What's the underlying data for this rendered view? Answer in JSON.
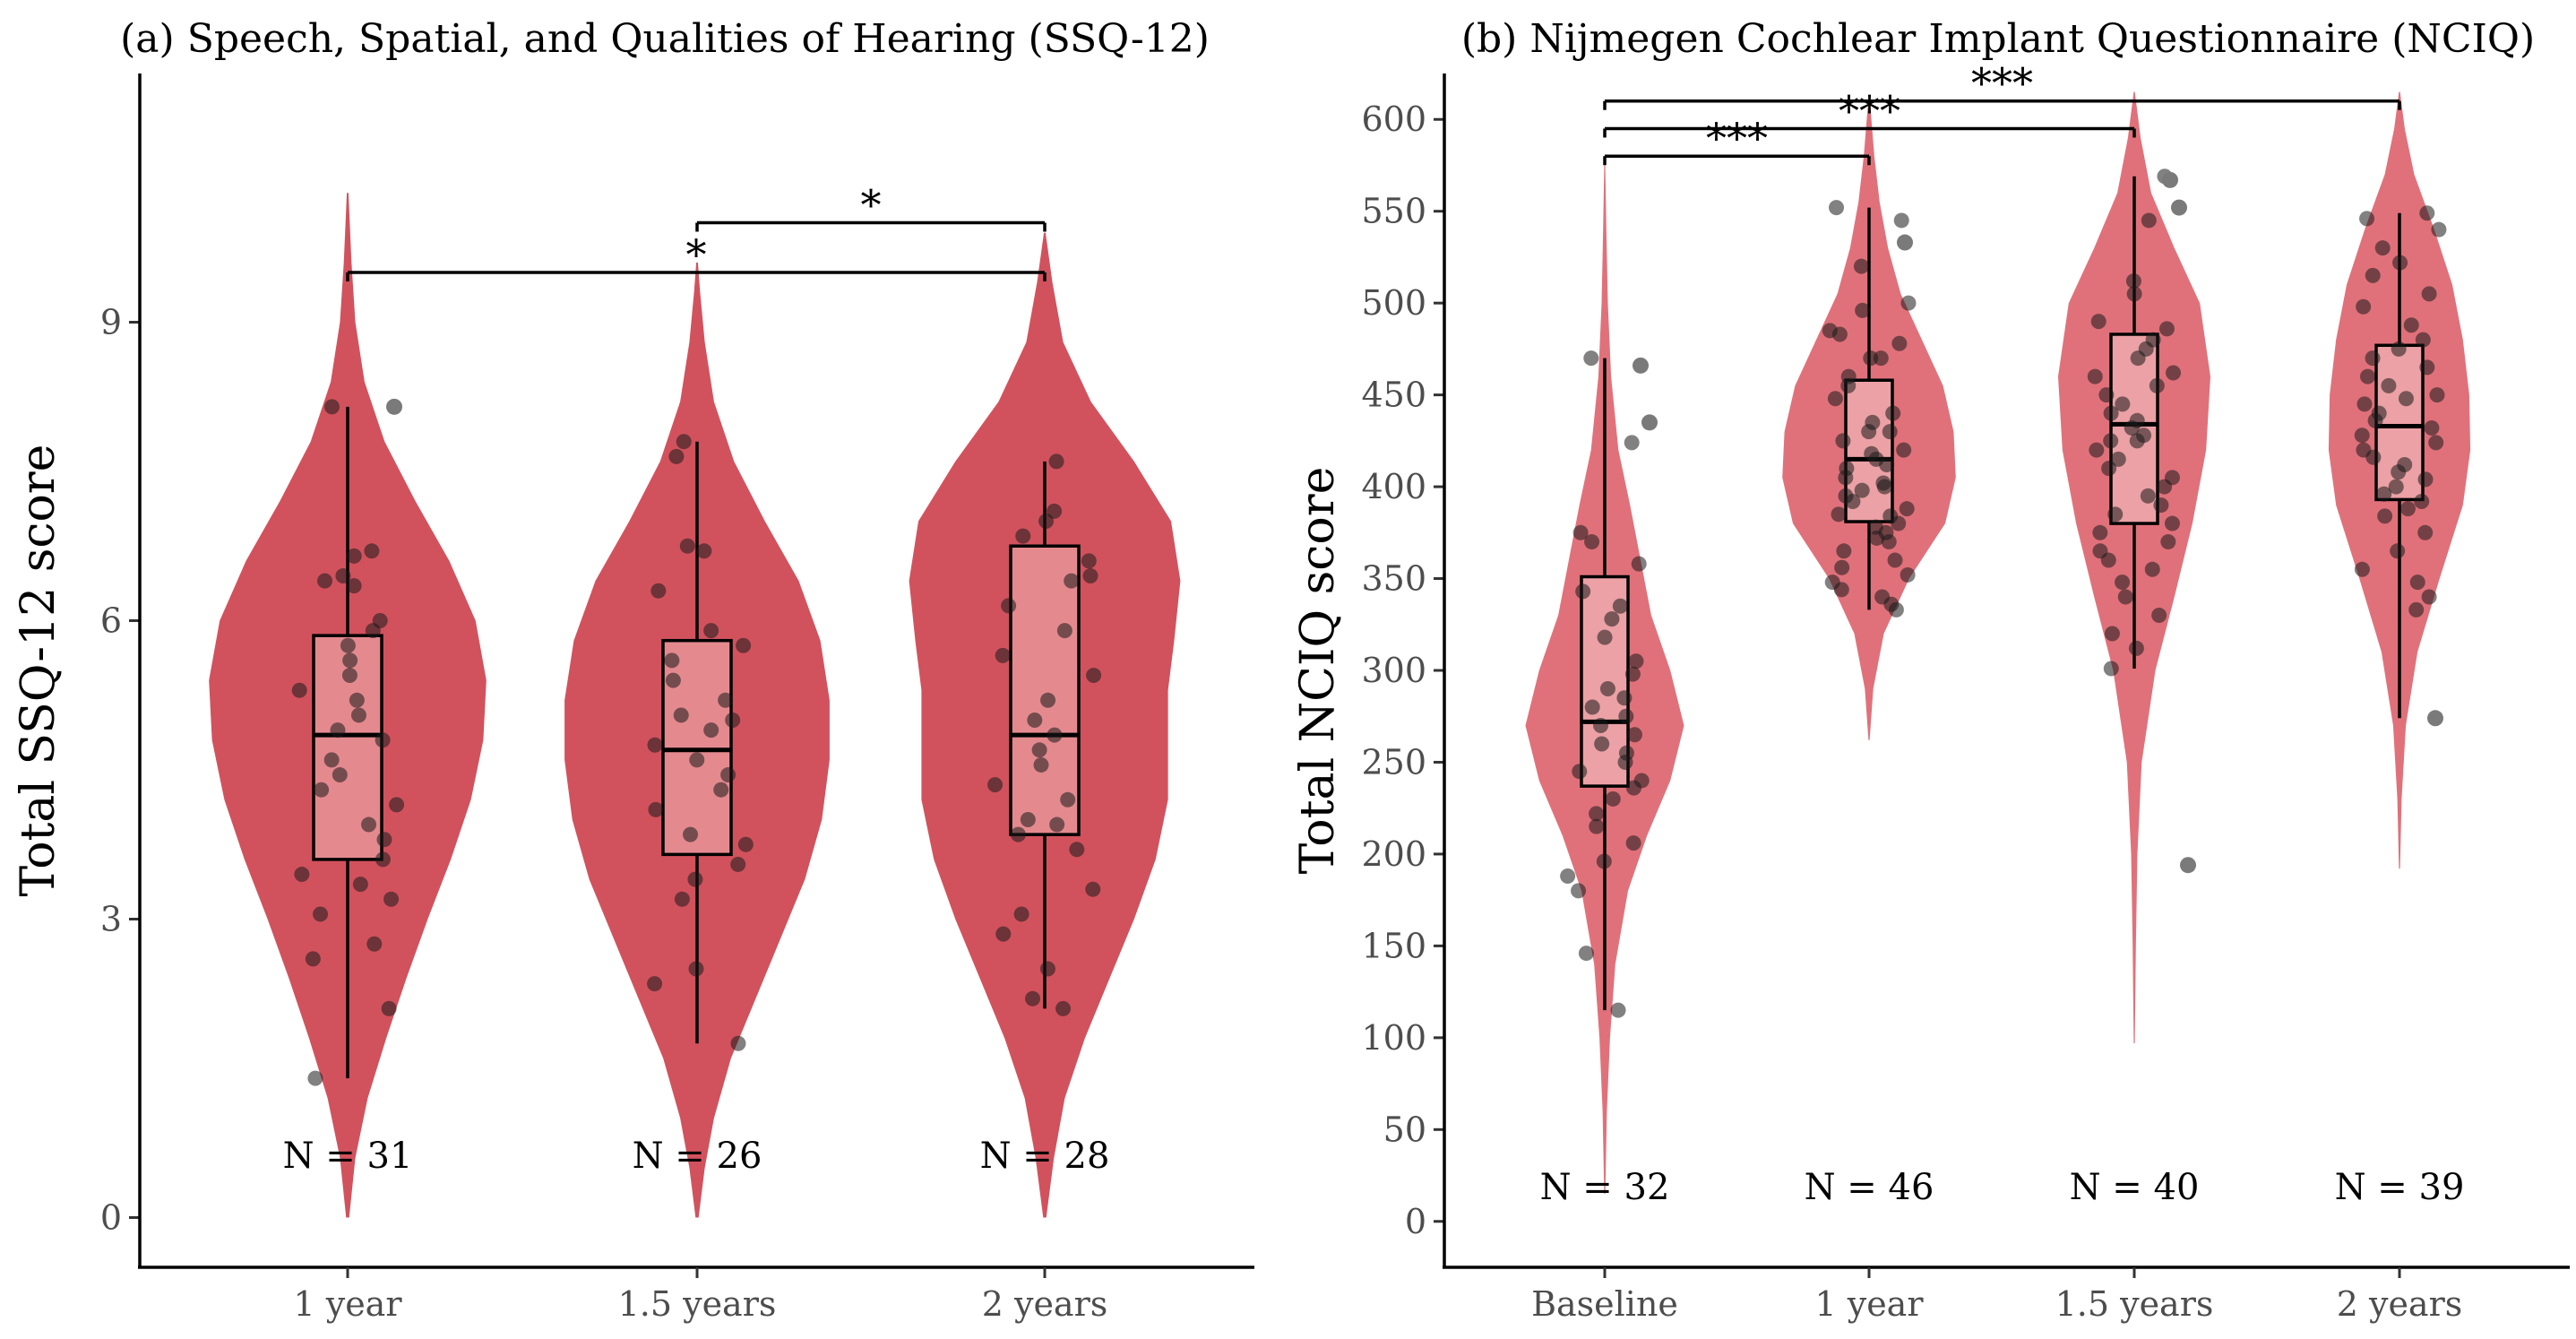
{
  "chart_data": [
    {
      "type": "violin",
      "title": "(a) Speech, Spatial, and Qualities of Hearing (SSQ-12)",
      "ylabel": "Total SSQ-12 score",
      "xlabel": "",
      "categories": [
        "1 year",
        "1.5 years",
        "2 years"
      ],
      "yticks": [
        "0",
        "3",
        "6",
        "9"
      ],
      "ylim": [
        -0.5,
        11.5
      ],
      "violin_color": "#d1525d",
      "box_fill": "#e48a8f",
      "n_labels": [
        "N = 31",
        "N = 26",
        "N = 28"
      ],
      "significance": [
        {
          "from": "1 year",
          "to": "2 years",
          "label": "*",
          "y": 9.5
        },
        {
          "from": "1.5 years",
          "to": "2 years",
          "label": "*",
          "y": 10.0
        }
      ],
      "boxes": [
        {
          "category": "1 year",
          "whisker_low": 1.4,
          "q1": 3.6,
          "median": 4.85,
          "q3": 5.85,
          "whisker_high": 8.15,
          "outliers": [
            8.15
          ]
        },
        {
          "category": "1.5 years",
          "whisker_low": 1.75,
          "q1": 3.65,
          "median": 4.7,
          "q3": 5.8,
          "whisker_high": 7.8,
          "outliers": []
        },
        {
          "category": "2 years",
          "whisker_low": 2.1,
          "q1": 3.85,
          "median": 4.85,
          "q3": 6.75,
          "whisker_high": 7.6,
          "outliers": []
        }
      ],
      "violins": [
        {
          "category": "1 year",
          "min": 0.0,
          "max": 10.3,
          "profile": [
            [
              0.0,
              0.01
            ],
            [
              0.6,
              0.05
            ],
            [
              1.2,
              0.13
            ],
            [
              1.8,
              0.25
            ],
            [
              2.4,
              0.38
            ],
            [
              3.0,
              0.52
            ],
            [
              3.6,
              0.67
            ],
            [
              4.2,
              0.8
            ],
            [
              4.8,
              0.88
            ],
            [
              5.4,
              0.9
            ],
            [
              6.0,
              0.83
            ],
            [
              6.6,
              0.66
            ],
            [
              7.2,
              0.44
            ],
            [
              7.8,
              0.24
            ],
            [
              8.4,
              0.11
            ],
            [
              9.0,
              0.05
            ],
            [
              9.6,
              0.025
            ],
            [
              10.3,
              0.005
            ]
          ]
        },
        {
          "category": "1.5 years",
          "min": 0.0,
          "max": 9.6,
          "profile": [
            [
              0.0,
              0.01
            ],
            [
              0.5,
              0.05
            ],
            [
              1.0,
              0.11
            ],
            [
              1.6,
              0.22
            ],
            [
              2.2,
              0.38
            ],
            [
              2.8,
              0.54
            ],
            [
              3.4,
              0.7
            ],
            [
              4.0,
              0.81
            ],
            [
              4.6,
              0.86
            ],
            [
              5.2,
              0.86
            ],
            [
              5.8,
              0.8
            ],
            [
              6.4,
              0.66
            ],
            [
              7.0,
              0.44
            ],
            [
              7.6,
              0.24
            ],
            [
              8.2,
              0.11
            ],
            [
              8.8,
              0.05
            ],
            [
              9.3,
              0.02
            ],
            [
              9.6,
              0.005
            ]
          ]
        },
        {
          "category": "2 years",
          "min": 0.0,
          "max": 9.9,
          "profile": [
            [
              0.0,
              0.01
            ],
            [
              0.6,
              0.06
            ],
            [
              1.2,
              0.13
            ],
            [
              1.8,
              0.26
            ],
            [
              2.4,
              0.42
            ],
            [
              3.0,
              0.58
            ],
            [
              3.6,
              0.72
            ],
            [
              4.2,
              0.8
            ],
            [
              4.8,
              0.8
            ],
            [
              5.3,
              0.8
            ],
            [
              5.8,
              0.84
            ],
            [
              6.4,
              0.88
            ],
            [
              7.0,
              0.82
            ],
            [
              7.6,
              0.58
            ],
            [
              8.2,
              0.3
            ],
            [
              8.8,
              0.12
            ],
            [
              9.4,
              0.05
            ],
            [
              9.9,
              0.005
            ]
          ]
        }
      ],
      "points": [
        {
          "category": "1 year",
          "values": [
            6.7,
            6.65,
            6.45,
            6.4,
            6.0,
            5.9,
            5.75,
            5.6,
            5.45,
            5.3,
            5.2,
            5.05,
            4.9,
            4.8,
            4.6,
            4.45,
            4.3,
            4.15,
            3.95,
            3.8,
            3.6,
            3.45,
            3.35,
            3.2,
            3.05,
            2.75,
            2.6,
            2.1,
            1.4,
            8.15,
            6.35
          ]
        },
        {
          "category": "1.5 years",
          "values": [
            7.8,
            6.75,
            6.7,
            6.3,
            5.9,
            5.75,
            5.6,
            5.4,
            5.2,
            5.0,
            4.9,
            4.75,
            4.6,
            4.45,
            4.3,
            4.1,
            3.85,
            3.75,
            3.55,
            3.4,
            3.2,
            2.5,
            2.35,
            1.75,
            7.65,
            5.05
          ]
        },
        {
          "category": "2 years",
          "values": [
            7.6,
            7.1,
            7.0,
            6.85,
            6.6,
            6.45,
            6.15,
            5.9,
            5.65,
            5.45,
            5.2,
            5.0,
            4.85,
            4.7,
            4.55,
            4.35,
            4.2,
            4.0,
            3.85,
            3.7,
            3.3,
            3.05,
            2.85,
            2.5,
            2.2,
            2.1,
            6.4,
            3.95
          ]
        }
      ]
    },
    {
      "type": "violin",
      "title": "(b) Nijmegen Cochlear Implant Questionnaire (NCIQ)",
      "ylabel": "Total NCIQ score",
      "xlabel": "",
      "categories": [
        "Baseline",
        "1 year",
        "1.5 years",
        "2 years"
      ],
      "yticks": [
        "0",
        "50",
        "100",
        "150",
        "200",
        "250",
        "300",
        "350",
        "400",
        "450",
        "500",
        "550",
        "600"
      ],
      "ylim": [
        -25,
        625
      ],
      "violin_color": "#e0717a",
      "box_fill": "#eba1a5",
      "n_labels": [
        "N = 32",
        "N = 46",
        "N = 40",
        "N = 39"
      ],
      "significance": [
        {
          "from": "Baseline",
          "to": "1 year",
          "label": "***",
          "y": 580
        },
        {
          "from": "Baseline",
          "to": "1.5 years",
          "label": "***",
          "y": 595
        },
        {
          "from": "Baseline",
          "to": "2 years",
          "label": "***",
          "y": 610
        }
      ],
      "boxes": [
        {
          "category": "Baseline",
          "whisker_low": 115,
          "q1": 237,
          "median": 272,
          "q3": 351,
          "whisker_high": 470,
          "outliers": [
            466,
            435
          ]
        },
        {
          "category": "1 year",
          "whisker_low": 333,
          "q1": 381,
          "median": 415,
          "q3": 458,
          "whisker_high": 552,
          "outliers": [
            533
          ]
        },
        {
          "category": "1.5 years",
          "whisker_low": 301,
          "q1": 380,
          "median": 434,
          "q3": 483,
          "whisker_high": 569,
          "outliers": [
            567,
            552,
            194
          ]
        },
        {
          "category": "2 years",
          "whisker_low": 274,
          "q1": 393,
          "median": 433,
          "q3": 477,
          "whisker_high": 549,
          "outliers": [
            274
          ]
        }
      ],
      "violins": [
        {
          "category": "Baseline",
          "min": 15,
          "max": 580,
          "profile": [
            [
              15,
              0.005
            ],
            [
              60,
              0.02
            ],
            [
              100,
              0.05
            ],
            [
              140,
              0.1
            ],
            [
              180,
              0.22
            ],
            [
              210,
              0.4
            ],
            [
              240,
              0.62
            ],
            [
              270,
              0.75
            ],
            [
              300,
              0.62
            ],
            [
              330,
              0.44
            ],
            [
              360,
              0.34
            ],
            [
              390,
              0.24
            ],
            [
              420,
              0.13
            ],
            [
              460,
              0.06
            ],
            [
              500,
              0.03
            ],
            [
              540,
              0.015
            ],
            [
              580,
              0.003
            ]
          ]
        },
        {
          "category": "1 year",
          "min": 262,
          "max": 612,
          "profile": [
            [
              262,
              0.005
            ],
            [
              290,
              0.04
            ],
            [
              320,
              0.14
            ],
            [
              350,
              0.38
            ],
            [
              380,
              0.72
            ],
            [
              405,
              0.82
            ],
            [
              430,
              0.8
            ],
            [
              455,
              0.7
            ],
            [
              480,
              0.5
            ],
            [
              505,
              0.3
            ],
            [
              530,
              0.18
            ],
            [
              555,
              0.1
            ],
            [
              580,
              0.05
            ],
            [
              612,
              0.005
            ]
          ]
        },
        {
          "category": "1.5 years",
          "min": 97,
          "max": 615,
          "profile": [
            [
              97,
              0.005
            ],
            [
              150,
              0.015
            ],
            [
              200,
              0.03
            ],
            [
              250,
              0.07
            ],
            [
              300,
              0.2
            ],
            [
              340,
              0.38
            ],
            [
              380,
              0.55
            ],
            [
              420,
              0.68
            ],
            [
              460,
              0.72
            ],
            [
              500,
              0.62
            ],
            [
              530,
              0.38
            ],
            [
              560,
              0.16
            ],
            [
              590,
              0.06
            ],
            [
              615,
              0.005
            ]
          ]
        },
        {
          "category": "2 years",
          "min": 192,
          "max": 615,
          "profile": [
            [
              192,
              0.005
            ],
            [
              230,
              0.02
            ],
            [
              270,
              0.06
            ],
            [
              310,
              0.17
            ],
            [
              350,
              0.38
            ],
            [
              390,
              0.6
            ],
            [
              420,
              0.67
            ],
            [
              450,
              0.66
            ],
            [
              480,
              0.6
            ],
            [
              510,
              0.5
            ],
            [
              540,
              0.33
            ],
            [
              570,
              0.14
            ],
            [
              595,
              0.05
            ],
            [
              615,
              0.005
            ]
          ]
        }
      ],
      "points": [
        {
          "category": "Baseline",
          "values": [
            470,
            424,
            375,
            370,
            358,
            343,
            335,
            328,
            318,
            305,
            298,
            290,
            285,
            280,
            275,
            270,
            265,
            260,
            255,
            250,
            245,
            240,
            236,
            230,
            222,
            215,
            206,
            196,
            188,
            180,
            146,
            115
          ]
        },
        {
          "category": "1 year",
          "values": [
            552,
            545,
            520,
            500,
            496,
            485,
            483,
            478,
            470,
            460,
            455,
            448,
            440,
            435,
            430,
            425,
            420,
            418,
            415,
            412,
            410,
            405,
            402,
            398,
            395,
            392,
            388,
            384,
            380,
            378,
            375,
            370,
            365,
            360,
            356,
            352,
            348,
            344,
            340,
            336,
            333,
            470,
            430,
            400,
            385,
            372
          ]
        },
        {
          "category": "1.5 years",
          "values": [
            569,
            545,
            512,
            505,
            490,
            486,
            480,
            475,
            470,
            462,
            455,
            450,
            445,
            440,
            436,
            432,
            428,
            425,
            420,
            415,
            410,
            405,
            400,
            395,
            390,
            385,
            380,
            375,
            370,
            365,
            360,
            355,
            348,
            340,
            330,
            320,
            312,
            301,
            460,
            425
          ]
        },
        {
          "category": "2 years",
          "values": [
            549,
            546,
            540,
            530,
            522,
            515,
            505,
            498,
            488,
            480,
            475,
            470,
            465,
            460,
            455,
            450,
            445,
            440,
            436,
            432,
            428,
            424,
            420,
            416,
            412,
            408,
            404,
            400,
            396,
            392,
            388,
            384,
            375,
            365,
            355,
            348,
            340,
            333,
            448
          ]
        }
      ]
    }
  ]
}
